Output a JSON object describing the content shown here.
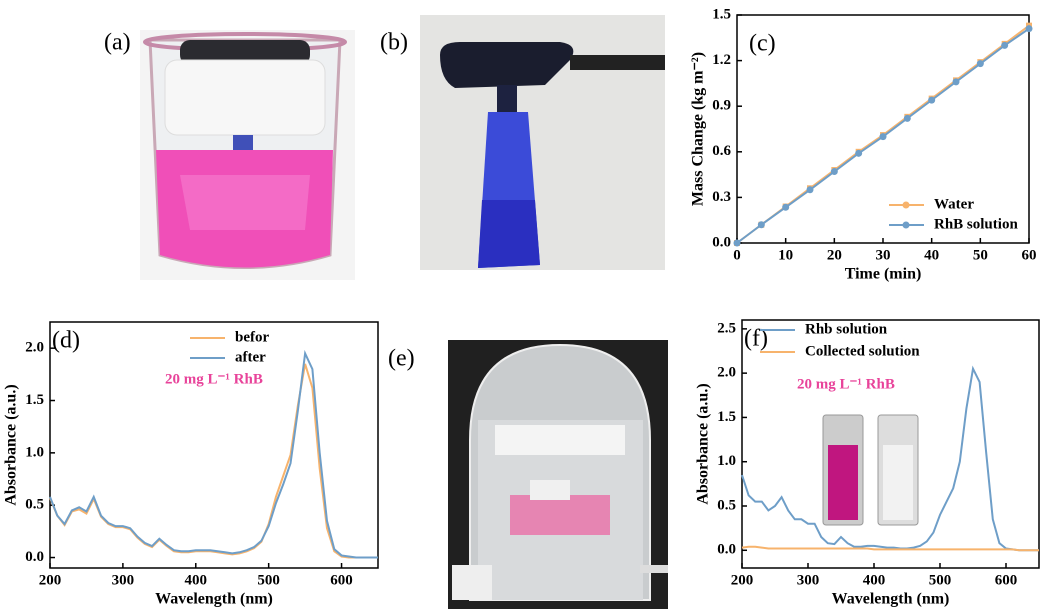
{
  "photo_labels": [
    "(a)",
    "(b)",
    "(e)"
  ],
  "chart_data": [
    {
      "type": "line",
      "panel_label": "(c)",
      "x_label": "Time (min)",
      "y_label": "Mass Change (kg m⁻²)",
      "x": [
        0,
        5,
        10,
        15,
        20,
        25,
        30,
        35,
        40,
        45,
        50,
        55,
        60
      ],
      "series": [
        {
          "name": "Water",
          "color": "#f7b36c",
          "marker": true,
          "values": [
            0,
            0.12,
            0.24,
            0.36,
            0.48,
            0.6,
            0.71,
            0.83,
            0.95,
            1.07,
            1.19,
            1.31,
            1.43
          ]
        },
        {
          "name": "RhB solution",
          "color": "#6e9ec8",
          "marker": true,
          "values": [
            0,
            0.12,
            0.235,
            0.35,
            0.47,
            0.59,
            0.7,
            0.82,
            0.94,
            1.06,
            1.18,
            1.3,
            1.41
          ]
        }
      ],
      "xlim": [
        0,
        60
      ],
      "xticks": [
        0,
        10,
        20,
        30,
        40,
        50,
        60
      ],
      "ylim": [
        0,
        1.5
      ],
      "yticks": [
        {
          "value": 0,
          "label": "0.0"
        },
        0.3,
        0.6,
        0.9,
        1.2,
        1.5
      ],
      "legend": "lower right"
    },
    {
      "type": "line",
      "panel_label": "(d)",
      "x_label": "Wavelength (nm)",
      "y_label": "Absorbance (a.u.)",
      "annotation": "20 mg L⁻¹ RhB",
      "x": [
        200,
        210,
        220,
        230,
        240,
        250,
        260,
        270,
        280,
        290,
        300,
        310,
        320,
        330,
        340,
        350,
        360,
        370,
        380,
        390,
        400,
        410,
        420,
        430,
        440,
        450,
        460,
        470,
        480,
        490,
        500,
        510,
        520,
        530,
        540,
        550,
        560,
        570,
        580,
        590,
        600,
        610,
        620,
        630,
        640,
        650
      ],
      "series": [
        {
          "name": "befor",
          "color": "#f7b36c",
          "values": [
            0.57,
            0.4,
            0.31,
            0.44,
            0.46,
            0.42,
            0.56,
            0.39,
            0.32,
            0.29,
            0.29,
            0.27,
            0.19,
            0.13,
            0.1,
            0.17,
            0.11,
            0.06,
            0.05,
            0.05,
            0.06,
            0.06,
            0.06,
            0.05,
            0.04,
            0.03,
            0.04,
            0.06,
            0.09,
            0.15,
            0.32,
            0.58,
            0.78,
            0.98,
            1.45,
            1.85,
            1.62,
            0.85,
            0.28,
            0.06,
            0.01,
            0,
            0,
            0,
            0,
            0
          ]
        },
        {
          "name": "after",
          "color": "#6e9ec8",
          "values": [
            0.58,
            0.4,
            0.32,
            0.45,
            0.48,
            0.44,
            0.58,
            0.4,
            0.33,
            0.3,
            0.3,
            0.28,
            0.2,
            0.14,
            0.11,
            0.18,
            0.12,
            0.07,
            0.06,
            0.06,
            0.07,
            0.07,
            0.07,
            0.06,
            0.05,
            0.04,
            0.05,
            0.07,
            0.1,
            0.16,
            0.3,
            0.52,
            0.7,
            0.9,
            1.4,
            1.95,
            1.8,
            1.0,
            0.35,
            0.08,
            0.02,
            0.01,
            0,
            0,
            0,
            0
          ]
        }
      ],
      "xlim": [
        200,
        650
      ],
      "xticks": [
        200,
        300,
        400,
        500,
        600
      ],
      "ylim": [
        -0.1,
        2.25
      ],
      "yticks": [
        {
          "value": 0,
          "label": "0.0"
        },
        0.5,
        {
          "value": 1,
          "label": "1.0"
        },
        1.5,
        {
          "value": 2,
          "label": "2.0"
        }
      ],
      "legend": "upper right"
    },
    {
      "type": "line",
      "panel_label": "(f)",
      "x_label": "Wavelength (nm)",
      "y_label": "Absorbance (a.u.)",
      "annotation": "20 mg L⁻¹ RhB",
      "x": [
        200,
        210,
        220,
        230,
        240,
        250,
        260,
        270,
        280,
        290,
        300,
        310,
        320,
        330,
        340,
        350,
        360,
        370,
        380,
        390,
        400,
        410,
        420,
        430,
        440,
        450,
        460,
        470,
        480,
        490,
        500,
        510,
        520,
        530,
        540,
        550,
        560,
        570,
        580,
        590,
        600,
        610,
        620,
        630,
        640,
        650
      ],
      "series": [
        {
          "name": "Rhb solution",
          "color": "#6e9ec8",
          "values": [
            0.85,
            0.62,
            0.55,
            0.55,
            0.45,
            0.5,
            0.6,
            0.45,
            0.35,
            0.35,
            0.3,
            0.3,
            0.15,
            0.08,
            0.07,
            0.15,
            0.08,
            0.04,
            0.04,
            0.05,
            0.05,
            0.04,
            0.03,
            0.03,
            0.02,
            0.02,
            0.03,
            0.05,
            0.1,
            0.2,
            0.4,
            0.55,
            0.7,
            1.0,
            1.6,
            2.05,
            1.9,
            1.1,
            0.35,
            0.08,
            0.02,
            0.01,
            0,
            0,
            0,
            0
          ]
        },
        {
          "name": "Collected solution",
          "color": "#f7b36c",
          "values": [
            0.03,
            0.04,
            0.04,
            0.03,
            0.02,
            0.02,
            0.02,
            0.02,
            0.02,
            0.02,
            0.02,
            0.02,
            0.02,
            0.02,
            0.02,
            0.02,
            0.02,
            0.02,
            0.02,
            0.02,
            0.01,
            0.01,
            0.01,
            0.01,
            0.01,
            0.01,
            0.01,
            0.01,
            0.01,
            0.01,
            0.01,
            0.01,
            0.01,
            0.01,
            0.01,
            0.01,
            0.01,
            0.01,
            0.01,
            0.01,
            0.01,
            0.01,
            0,
            0,
            0,
            0
          ]
        }
      ],
      "xlim": [
        200,
        650
      ],
      "xticks": [
        200,
        300,
        400,
        500,
        600
      ],
      "ylim": [
        -0.2,
        2.6
      ],
      "yticks": [
        {
          "value": 0,
          "label": "0.0"
        },
        0.5,
        {
          "value": 1,
          "label": "1.0"
        },
        1.5,
        {
          "value": 2,
          "label": "2.0"
        },
        2.5
      ],
      "legend": "upper left"
    }
  ]
}
